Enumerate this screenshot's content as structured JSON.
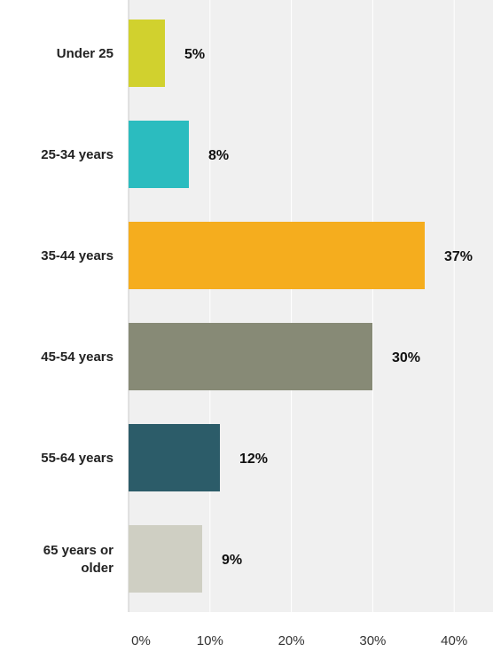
{
  "chart_data": {
    "type": "bar",
    "orientation": "horizontal",
    "title": "",
    "xlabel": "",
    "ylabel": "",
    "categories": [
      [
        "Under 25"
      ],
      [
        "25-34 years"
      ],
      [
        "35-44 years"
      ],
      [
        "45-54 years"
      ],
      [
        "55-64 years"
      ],
      [
        "65 years or",
        "older"
      ]
    ],
    "values": [
      5,
      8,
      37,
      30,
      12,
      9
    ],
    "value_labels": [
      "5%",
      "8%",
      "37%",
      "30%",
      "12%",
      "9%"
    ],
    "colors": [
      "#d1d12e",
      "#2bbcbf",
      "#f5ad1e",
      "#878a76",
      "#2c5c69",
      "#cfcfc3"
    ],
    "xlim": [
      0,
      45
    ],
    "xticks": [
      0,
      10,
      20,
      30,
      40
    ],
    "xtick_labels": [
      "0%",
      "10%",
      "20%",
      "30%",
      "40%"
    ],
    "grid": true,
    "background": "#f0f0f0",
    "gridline_color": "#ffffff"
  }
}
